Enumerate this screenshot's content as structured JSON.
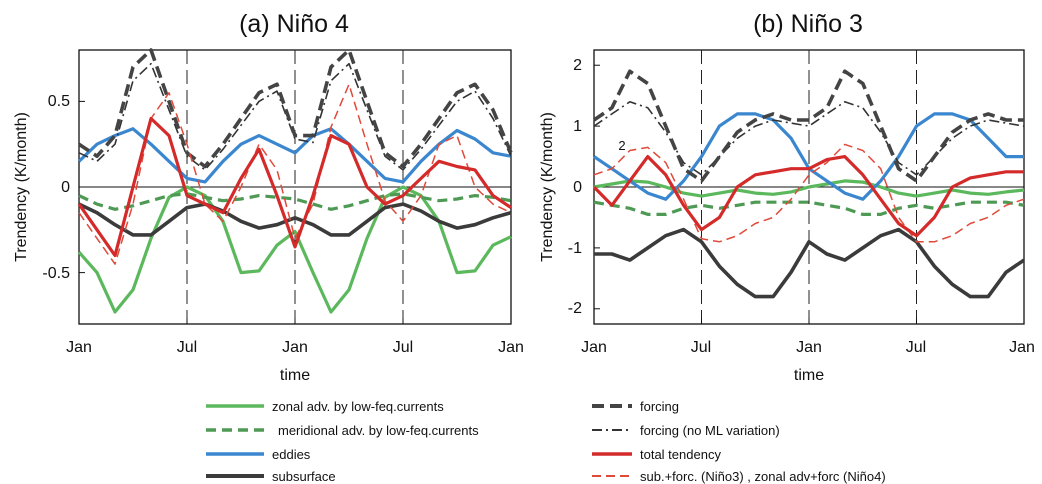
{
  "chart_data": [
    {
      "type": "line",
      "title": "(a) Niño 4",
      "xlabel": "time",
      "ylabel": "Trendency (K/month)",
      "xticks": [
        "Jan",
        "Jul",
        "Jan",
        "Jul",
        "Jan"
      ],
      "ylim": [
        -0.8,
        0.8
      ],
      "yticks": [
        "-0.5",
        "0",
        "0.5"
      ],
      "grid": false,
      "zero_line": true,
      "x_months": [
        0,
        1,
        2,
        3,
        4,
        5,
        6,
        7,
        8,
        9,
        10,
        11,
        12,
        13,
        14,
        15,
        16,
        17,
        18,
        19,
        20,
        21,
        22,
        23,
        24
      ],
      "series": [
        {
          "key": "zonal",
          "values": [
            -0.38,
            -0.5,
            -0.73,
            -0.6,
            -0.3,
            -0.06,
            0.0,
            -0.05,
            -0.2,
            -0.5,
            -0.49,
            -0.34,
            -0.26,
            -0.5,
            -0.73,
            -0.6,
            -0.3,
            -0.06,
            0.0,
            -0.05,
            -0.2,
            -0.5,
            -0.49,
            -0.34,
            -0.29
          ]
        },
        {
          "key": "meridional",
          "values": [
            -0.05,
            -0.1,
            -0.13,
            -0.11,
            -0.08,
            -0.05,
            -0.04,
            -0.06,
            -0.08,
            -0.07,
            -0.05,
            -0.06,
            -0.07,
            -0.1,
            -0.13,
            -0.11,
            -0.08,
            -0.05,
            -0.04,
            -0.06,
            -0.08,
            -0.07,
            -0.05,
            -0.06,
            -0.08
          ]
        },
        {
          "key": "eddies",
          "values": [
            0.15,
            0.25,
            0.3,
            0.34,
            0.25,
            0.15,
            0.05,
            0.03,
            0.15,
            0.25,
            0.3,
            0.25,
            0.2,
            0.3,
            0.34,
            0.25,
            0.15,
            0.05,
            0.03,
            0.15,
            0.25,
            0.33,
            0.28,
            0.2,
            0.18
          ]
        },
        {
          "key": "subsurface",
          "values": [
            -0.1,
            -0.15,
            -0.22,
            -0.28,
            -0.28,
            -0.2,
            -0.12,
            -0.1,
            -0.14,
            -0.2,
            -0.24,
            -0.22,
            -0.18,
            -0.22,
            -0.28,
            -0.28,
            -0.2,
            -0.12,
            -0.1,
            -0.14,
            -0.2,
            -0.24,
            -0.22,
            -0.18,
            -0.15
          ]
        },
        {
          "key": "forcing",
          "values": [
            0.25,
            0.18,
            0.3,
            0.7,
            0.8,
            0.5,
            0.2,
            0.12,
            0.25,
            0.4,
            0.55,
            0.6,
            0.3,
            0.3,
            0.7,
            0.8,
            0.5,
            0.2,
            0.12,
            0.25,
            0.4,
            0.55,
            0.6,
            0.45,
            0.2
          ]
        },
        {
          "key": "forcing_noml",
          "values": [
            0.2,
            0.15,
            0.25,
            0.62,
            0.72,
            0.45,
            0.18,
            0.1,
            0.22,
            0.36,
            0.5,
            0.56,
            0.28,
            0.26,
            0.62,
            0.72,
            0.45,
            0.18,
            0.1,
            0.22,
            0.36,
            0.5,
            0.56,
            0.4,
            0.18
          ]
        },
        {
          "key": "total",
          "values": [
            -0.1,
            -0.25,
            -0.4,
            0.0,
            0.4,
            0.3,
            -0.05,
            -0.1,
            -0.15,
            0.05,
            0.22,
            -0.05,
            -0.35,
            -0.05,
            0.3,
            0.25,
            0.0,
            -0.1,
            -0.05,
            0.05,
            0.15,
            0.12,
            0.1,
            -0.05,
            -0.12
          ]
        },
        {
          "key": "subforc",
          "values": [
            -0.15,
            -0.3,
            -0.45,
            -0.1,
            0.4,
            0.55,
            0.25,
            -0.1,
            -0.2,
            0.0,
            0.25,
            0.1,
            -0.3,
            -0.1,
            0.35,
            0.6,
            0.25,
            -0.08,
            -0.2,
            -0.05,
            0.25,
            0.3,
            0.0,
            -0.1,
            -0.15
          ]
        }
      ]
    },
    {
      "type": "line",
      "title": "(b) Niño 3",
      "xlabel": "time",
      "ylabel": "Trendency (K/month)",
      "xticks": [
        "Jan",
        "Jul",
        "Jan",
        "Jul",
        "Jan"
      ],
      "ylim": [
        -2.25,
        2.25
      ],
      "yticks": [
        "-2",
        "-1",
        "0",
        "1",
        "2"
      ],
      "grid": false,
      "zero_line": true,
      "annotation": "2",
      "x_months": [
        0,
        1,
        2,
        3,
        4,
        5,
        6,
        7,
        8,
        9,
        10,
        11,
        12,
        13,
        14,
        15,
        16,
        17,
        18,
        19,
        20,
        21,
        22,
        23,
        24
      ],
      "series": [
        {
          "key": "zonal",
          "values": [
            0.0,
            0.05,
            0.1,
            0.08,
            0.0,
            -0.1,
            -0.15,
            -0.1,
            -0.05,
            -0.1,
            -0.12,
            -0.08,
            0.0,
            0.05,
            0.1,
            0.08,
            0.0,
            -0.1,
            -0.15,
            -0.1,
            -0.05,
            -0.1,
            -0.12,
            -0.08,
            -0.05
          ]
        },
        {
          "key": "meridional",
          "values": [
            -0.25,
            -0.3,
            -0.35,
            -0.45,
            -0.45,
            -0.35,
            -0.3,
            -0.35,
            -0.3,
            -0.25,
            -0.25,
            -0.25,
            -0.25,
            -0.3,
            -0.35,
            -0.45,
            -0.45,
            -0.35,
            -0.3,
            -0.35,
            -0.3,
            -0.25,
            -0.25,
            -0.25,
            -0.3
          ]
        },
        {
          "key": "eddies",
          "values": [
            0.5,
            0.3,
            0.1,
            -0.1,
            -0.2,
            0.1,
            0.5,
            1.0,
            1.2,
            1.2,
            1.1,
            0.8,
            0.3,
            0.1,
            -0.1,
            -0.2,
            0.1,
            0.5,
            1.0,
            1.2,
            1.2,
            1.1,
            0.8,
            0.5,
            0.5
          ]
        },
        {
          "key": "subsurface",
          "values": [
            -1.1,
            -1.1,
            -1.2,
            -1.0,
            -0.8,
            -0.7,
            -0.9,
            -1.3,
            -1.6,
            -1.8,
            -1.8,
            -1.4,
            -0.9,
            -1.1,
            -1.2,
            -1.0,
            -0.8,
            -0.7,
            -0.9,
            -1.3,
            -1.6,
            -1.8,
            -1.8,
            -1.4,
            -1.2
          ]
        },
        {
          "key": "forcing",
          "values": [
            1.1,
            1.3,
            1.9,
            1.7,
            1.0,
            0.3,
            0.1,
            0.5,
            0.9,
            1.1,
            1.2,
            1.1,
            1.1,
            1.3,
            1.9,
            1.7,
            1.0,
            0.3,
            0.1,
            0.5,
            0.9,
            1.1,
            1.2,
            1.1,
            1.1
          ]
        },
        {
          "key": "forcing_noml",
          "values": [
            1.0,
            1.2,
            1.4,
            1.3,
            0.9,
            0.4,
            0.2,
            0.5,
            0.8,
            1.0,
            1.1,
            1.05,
            1.0,
            1.2,
            1.4,
            1.3,
            0.9,
            0.4,
            0.2,
            0.5,
            0.8,
            1.0,
            1.1,
            1.05,
            1.0
          ]
        },
        {
          "key": "total",
          "values": [
            0.0,
            -0.3,
            0.1,
            0.5,
            0.2,
            -0.3,
            -0.7,
            -0.5,
            0.0,
            0.2,
            0.25,
            0.3,
            0.3,
            0.45,
            0.5,
            0.2,
            -0.2,
            -0.6,
            -0.8,
            -0.5,
            0.0,
            0.15,
            0.2,
            0.25,
            0.25
          ]
        },
        {
          "key": "subforc",
          "values": [
            0.2,
            0.3,
            0.6,
            0.65,
            0.4,
            -0.2,
            -0.85,
            -0.9,
            -0.8,
            -0.6,
            -0.5,
            -0.2,
            0.2,
            0.4,
            0.7,
            0.6,
            0.3,
            -0.5,
            -0.9,
            -0.9,
            -0.8,
            -0.6,
            -0.5,
            -0.3,
            -0.2
          ]
        }
      ]
    }
  ],
  "legend": [
    {
      "key": "zonal",
      "label": "zonal adv. by low-feq.currents",
      "column": "left"
    },
    {
      "key": "meridional",
      "label": "meridional adv. by low-feq.currents",
      "column": "left"
    },
    {
      "key": "eddies",
      "label": "eddies",
      "column": "left"
    },
    {
      "key": "subsurface",
      "label": "subsurface",
      "column": "left"
    },
    {
      "key": "forcing",
      "label": "forcing",
      "column": "right"
    },
    {
      "key": "forcing_noml",
      "label": "forcing (no ML variation)",
      "column": "right"
    },
    {
      "key": "total",
      "label": "total tendency",
      "column": "right"
    },
    {
      "key": "subforc",
      "label": "sub.+forc. (Niño3) , zonal adv+forc (Niño4)",
      "column": "right"
    }
  ],
  "styles": {
    "zonal": {
      "color": "#5cb85c",
      "dash": "",
      "width": 3.2
    },
    "meridional": {
      "color": "#4e9a55",
      "dash": "10 6",
      "width": 3.2
    },
    "eddies": {
      "color": "#3a87d0",
      "dash": "",
      "width": 3.2
    },
    "subsurface": {
      "color": "#3b3b3b",
      "dash": "",
      "width": 3.6
    },
    "forcing": {
      "color": "#444444",
      "dash": "12 6",
      "width": 3.6
    },
    "forcing_noml": {
      "color": "#333333",
      "dash": "10 4 2 4",
      "width": 1.6
    },
    "total": {
      "color": "#d42a2a",
      "dash": "",
      "width": 3.2
    },
    "subforc": {
      "color": "#e04a3a",
      "dash": "9 5",
      "width": 1.5
    }
  }
}
